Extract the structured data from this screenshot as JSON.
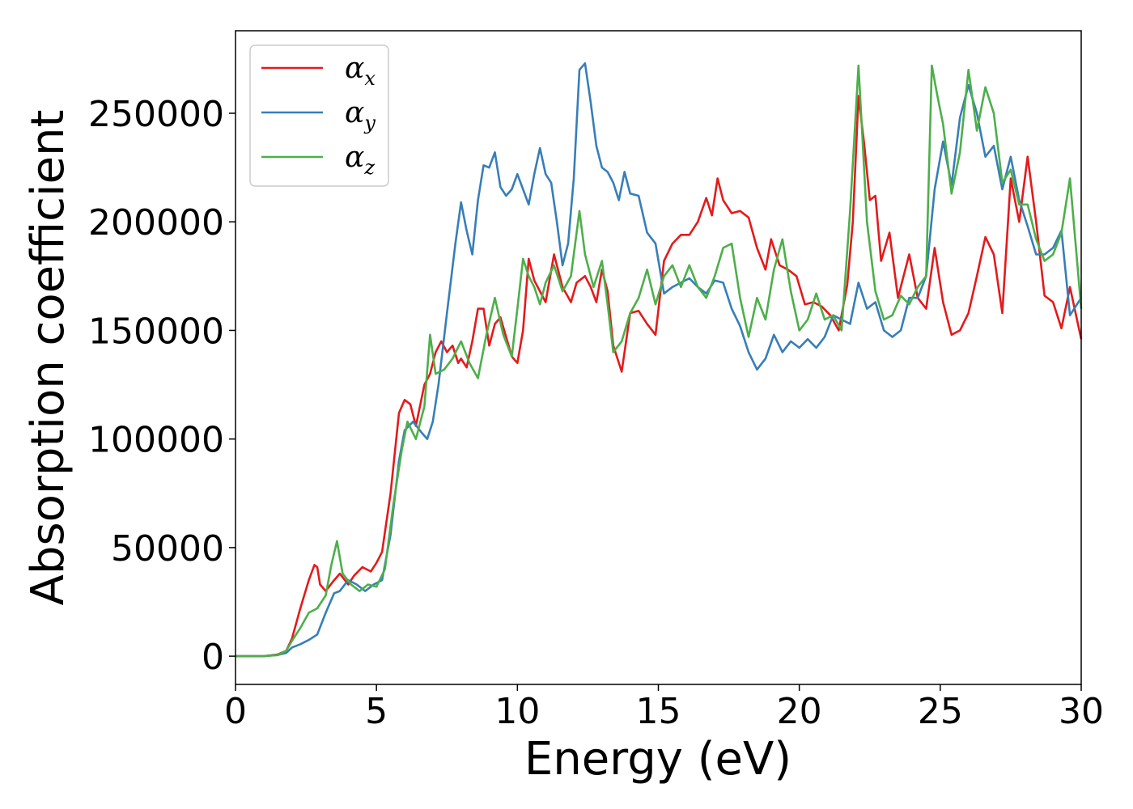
{
  "chart_data": {
    "type": "line",
    "title": "",
    "xlabel": "Energy (eV)",
    "ylabel": "Absorption coefficient",
    "xlim": [
      0,
      30
    ],
    "ylim": [
      -13000,
      288000
    ],
    "xticks": [
      "0",
      "5",
      "10",
      "15",
      "20",
      "25",
      "30"
    ],
    "yticks": [
      "0",
      "50000",
      "100000",
      "150000",
      "200000",
      "250000"
    ],
    "grid": false,
    "legend_position": "top-left",
    "series": [
      {
        "name": "α",
        "subscript": "x",
        "color": "#e41a1c",
        "x": [
          0,
          1,
          1.5,
          1.8,
          2.0,
          2.3,
          2.6,
          2.8,
          2.9,
          3.0,
          3.2,
          3.5,
          3.7,
          4.0,
          4.2,
          4.5,
          4.8,
          5.0,
          5.2,
          5.5,
          5.8,
          6.0,
          6.2,
          6.4,
          6.7,
          6.9,
          7.1,
          7.3,
          7.5,
          7.7,
          7.9,
          8.0,
          8.2,
          8.4,
          8.6,
          8.8,
          9.0,
          9.2,
          9.4,
          9.6,
          9.8,
          10.0,
          10.2,
          10.4,
          10.6,
          10.8,
          11.0,
          11.3,
          11.6,
          11.9,
          12.1,
          12.4,
          12.6,
          12.8,
          13.0,
          13.2,
          13.4,
          13.7,
          14.0,
          14.3,
          14.6,
          14.9,
          15.2,
          15.5,
          15.8,
          16.1,
          16.4,
          16.7,
          16.9,
          17.1,
          17.3,
          17.6,
          17.9,
          18.2,
          18.5,
          18.8,
          19.0,
          19.3,
          19.6,
          19.9,
          20.2,
          20.5,
          20.8,
          21.1,
          21.4,
          21.7,
          21.9,
          22.1,
          22.3,
          22.5,
          22.7,
          22.9,
          23.2,
          23.5,
          23.7,
          23.9,
          24.2,
          24.5,
          24.8,
          25.1,
          25.4,
          25.7,
          26.0,
          26.3,
          26.6,
          26.9,
          27.2,
          27.5,
          27.8,
          28.1,
          28.4,
          28.7,
          29.0,
          29.3,
          29.6,
          30
        ],
        "y": [
          0,
          0,
          800,
          2500,
          8000,
          22000,
          35000,
          42000,
          41000,
          33000,
          30000,
          35000,
          38000,
          33000,
          37000,
          41000,
          39000,
          43000,
          48000,
          75000,
          112000,
          118000,
          116000,
          106000,
          125000,
          130000,
          140000,
          145000,
          140000,
          143000,
          135000,
          137000,
          133000,
          145000,
          160000,
          160000,
          143000,
          153000,
          156000,
          147000,
          138000,
          135000,
          150000,
          183000,
          173000,
          168000,
          163000,
          185000,
          170000,
          163000,
          172000,
          175000,
          170000,
          163000,
          178000,
          168000,
          143000,
          131000,
          158000,
          159000,
          153000,
          148000,
          182000,
          190000,
          194000,
          194000,
          200000,
          211000,
          203000,
          220000,
          210000,
          204000,
          205000,
          202000,
          188000,
          178000,
          192000,
          180000,
          178000,
          175000,
          162000,
          163000,
          161000,
          157000,
          150000,
          171000,
          200000,
          258000,
          236000,
          210000,
          212000,
          182000,
          195000,
          165000,
          175000,
          185000,
          165000,
          160000,
          188000,
          163000,
          148000,
          150000,
          158000,
          175000,
          193000,
          185000,
          158000,
          220000,
          200000,
          230000,
          200000,
          166000,
          163000,
          151000,
          170000,
          146000
        ]
      },
      {
        "name": "α",
        "subscript": "y",
        "color": "#377eb8",
        "x": [
          0,
          1,
          1.5,
          1.8,
          2.0,
          2.3,
          2.6,
          2.9,
          3.2,
          3.5,
          3.7,
          4.0,
          4.3,
          4.6,
          4.9,
          5.2,
          5.5,
          5.8,
          6.0,
          6.3,
          6.6,
          6.8,
          7.0,
          7.2,
          7.5,
          7.8,
          8.0,
          8.2,
          8.4,
          8.6,
          8.8,
          9.0,
          9.2,
          9.4,
          9.6,
          9.8,
          10.0,
          10.2,
          10.4,
          10.6,
          10.8,
          11.0,
          11.2,
          11.4,
          11.6,
          11.8,
          12.0,
          12.2,
          12.4,
          12.6,
          12.8,
          13.0,
          13.2,
          13.4,
          13.6,
          13.8,
          14.0,
          14.3,
          14.6,
          14.9,
          15.2,
          15.5,
          15.8,
          16.1,
          16.4,
          16.7,
          17.0,
          17.3,
          17.6,
          17.9,
          18.2,
          18.5,
          18.8,
          19.1,
          19.4,
          19.7,
          20.0,
          20.3,
          20.6,
          20.9,
          21.2,
          21.5,
          21.8,
          22.1,
          22.4,
          22.7,
          23.0,
          23.3,
          23.6,
          23.9,
          24.2,
          24.5,
          24.8,
          25.1,
          25.4,
          25.7,
          26.0,
          26.3,
          26.6,
          26.9,
          27.2,
          27.5,
          27.8,
          28.1,
          28.4,
          28.7,
          29.0,
          29.3,
          29.6,
          30
        ],
        "y": [
          0,
          0,
          600,
          1500,
          4000,
          5500,
          7500,
          10000,
          20000,
          29000,
          30000,
          35000,
          33000,
          30000,
          33000,
          35000,
          56000,
          90000,
          104000,
          108000,
          103000,
          100000,
          108000,
          125000,
          158000,
          190000,
          209000,
          196000,
          185000,
          210000,
          226000,
          225000,
          232000,
          216000,
          212000,
          215000,
          222000,
          215000,
          208000,
          222000,
          234000,
          222000,
          218000,
          200000,
          180000,
          190000,
          220000,
          270000,
          273000,
          255000,
          235000,
          225000,
          223000,
          218000,
          210000,
          223000,
          213000,
          212000,
          195000,
          190000,
          167000,
          170000,
          172000,
          174000,
          170000,
          167000,
          173000,
          172000,
          160000,
          152000,
          140000,
          132000,
          137000,
          148000,
          140000,
          145000,
          142000,
          146000,
          142000,
          147000,
          157000,
          155000,
          153000,
          172000,
          160000,
          163000,
          150000,
          147000,
          150000,
          165000,
          165000,
          175000,
          215000,
          237000,
          217000,
          248000,
          263000,
          250000,
          230000,
          235000,
          215000,
          230000,
          210000,
          198000,
          185000,
          185000,
          188000,
          196000,
          157000,
          165000
        ]
      },
      {
        "name": "α",
        "subscript": "z",
        "color": "#4daf4a",
        "x": [
          0,
          1,
          1.5,
          1.8,
          2.0,
          2.3,
          2.6,
          2.9,
          3.2,
          3.4,
          3.6,
          3.8,
          4.1,
          4.4,
          4.7,
          5.0,
          5.3,
          5.6,
          5.9,
          6.1,
          6.4,
          6.7,
          6.9,
          7.1,
          7.4,
          7.7,
          8.0,
          8.3,
          8.6,
          8.9,
          9.2,
          9.5,
          9.8,
          10.0,
          10.2,
          10.4,
          10.6,
          10.8,
          11.0,
          11.3,
          11.6,
          11.9,
          12.2,
          12.4,
          12.7,
          13.0,
          13.2,
          13.4,
          13.7,
          14.0,
          14.3,
          14.6,
          14.9,
          15.2,
          15.5,
          15.8,
          16.1,
          16.4,
          16.7,
          17.0,
          17.3,
          17.6,
          17.9,
          18.2,
          18.5,
          18.8,
          19.1,
          19.4,
          19.7,
          20.0,
          20.3,
          20.6,
          20.9,
          21.2,
          21.5,
          21.8,
          22.1,
          22.4,
          22.7,
          23.0,
          23.3,
          23.6,
          23.9,
          24.2,
          24.5,
          24.7,
          24.9,
          25.1,
          25.4,
          25.7,
          26.0,
          26.3,
          26.6,
          26.9,
          27.2,
          27.5,
          27.8,
          28.1,
          28.4,
          28.7,
          29.0,
          29.3,
          29.6,
          30
        ],
        "y": [
          0,
          0,
          500,
          2500,
          7000,
          13000,
          20000,
          22000,
          28000,
          42000,
          53000,
          38000,
          33000,
          30000,
          33000,
          32000,
          40000,
          70000,
          95000,
          108000,
          100000,
          115000,
          148000,
          130000,
          132000,
          137000,
          145000,
          135000,
          128000,
          148000,
          165000,
          148000,
          138000,
          160000,
          183000,
          175000,
          170000,
          162000,
          172000,
          180000,
          168000,
          175000,
          205000,
          185000,
          170000,
          182000,
          162000,
          140000,
          145000,
          158000,
          165000,
          178000,
          162000,
          175000,
          180000,
          170000,
          180000,
          170000,
          165000,
          175000,
          188000,
          190000,
          165000,
          147000,
          165000,
          155000,
          178000,
          192000,
          168000,
          150000,
          155000,
          167000,
          155000,
          157000,
          150000,
          205000,
          272000,
          200000,
          168000,
          155000,
          157000,
          166000,
          162000,
          170000,
          175000,
          272000,
          258000,
          245000,
          213000,
          232000,
          270000,
          242000,
          262000,
          250000,
          218000,
          224000,
          208000,
          208000,
          192000,
          182000,
          185000,
          195000,
          220000,
          160000
        ]
      }
    ]
  }
}
